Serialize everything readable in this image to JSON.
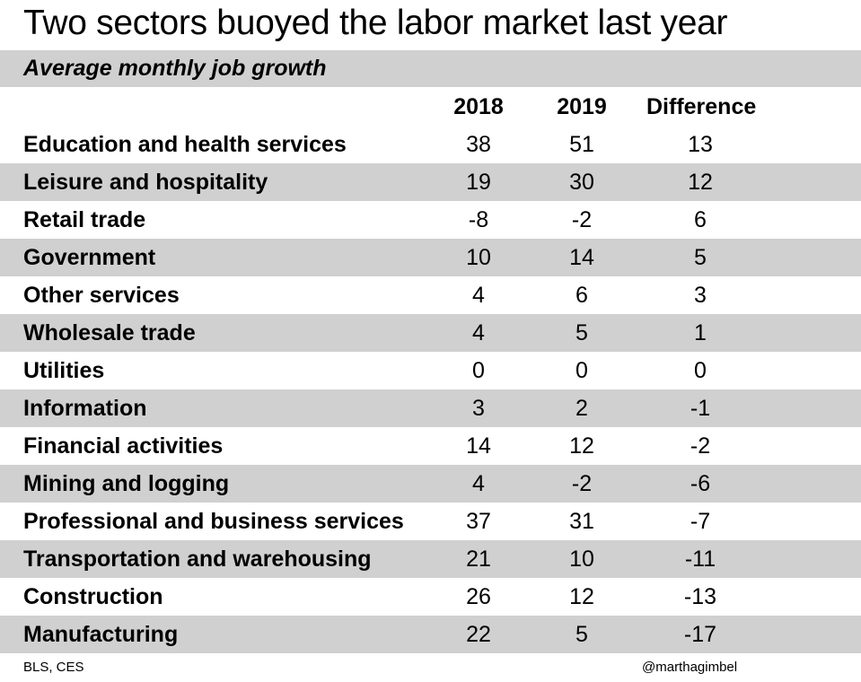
{
  "title": "Two sectors buoyed the labor market last year",
  "subtitle": "Average monthly job growth",
  "source": "BLS, CES",
  "credit": "@marthagimbel",
  "colors": {
    "stripe": "#d0d0d0",
    "background": "#ffffff"
  },
  "chart_data": {
    "type": "table",
    "title": "Two sectors buoyed the labor market last year",
    "subtitle": "Average monthly job growth",
    "columns": [
      "",
      "2018",
      "2019",
      "Difference"
    ],
    "rows": [
      [
        "Education and health services",
        "38",
        "51",
        "13"
      ],
      [
        "Leisure and hospitality",
        "19",
        "30",
        "12"
      ],
      [
        "Retail trade",
        "-8",
        "-2",
        "6"
      ],
      [
        "Government",
        "10",
        "14",
        "5"
      ],
      [
        "Other services",
        "4",
        "6",
        "3"
      ],
      [
        "Wholesale trade",
        "4",
        "5",
        "1"
      ],
      [
        "Utilities",
        "0",
        "0",
        "0"
      ],
      [
        "Information",
        "3",
        "2",
        "-1"
      ],
      [
        "Financial activities",
        "14",
        "12",
        "-2"
      ],
      [
        "Mining and logging",
        "4",
        "-2",
        "-6"
      ],
      [
        "Professional and business services",
        "37",
        "31",
        "-7"
      ],
      [
        "Transportation and warehousing",
        "21",
        "10",
        "-11"
      ],
      [
        "Construction",
        "26",
        "12",
        "-13"
      ],
      [
        "Manufacturing",
        "22",
        "5",
        "-17"
      ]
    ]
  }
}
